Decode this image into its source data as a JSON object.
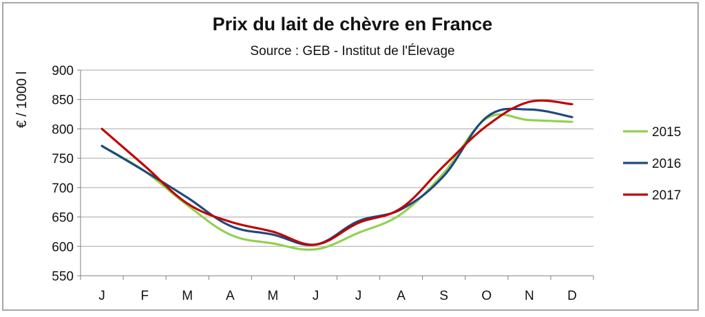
{
  "chart_data": {
    "type": "line",
    "title": "Prix du lait de chèvre en France",
    "subtitle": "Source : GEB - Institut de l'Élevage",
    "xlabel": "",
    "ylabel": "€ / 1000 l",
    "categories": [
      "J",
      "F",
      "M",
      "A",
      "M",
      "J",
      "J",
      "A",
      "S",
      "O",
      "N",
      "D"
    ],
    "ylim": [
      550,
      900
    ],
    "yticks": [
      550,
      600,
      650,
      700,
      750,
      800,
      850,
      900
    ],
    "grid": true,
    "legend_position": "right",
    "series": [
      {
        "name": "2015",
        "color": "#92d050",
        "values": [
          771,
          728,
          670,
          620,
          605,
          595,
          623,
          655,
          725,
          818,
          815,
          812
        ]
      },
      {
        "name": "2016",
        "color": "#1f497d",
        "values": [
          771,
          728,
          683,
          635,
          620,
          603,
          643,
          663,
          720,
          820,
          833,
          820
        ]
      },
      {
        "name": "2017",
        "color": "#c00000",
        "values": [
          800,
          737,
          673,
          642,
          625,
          603,
          640,
          665,
          737,
          805,
          846,
          842
        ]
      }
    ]
  }
}
